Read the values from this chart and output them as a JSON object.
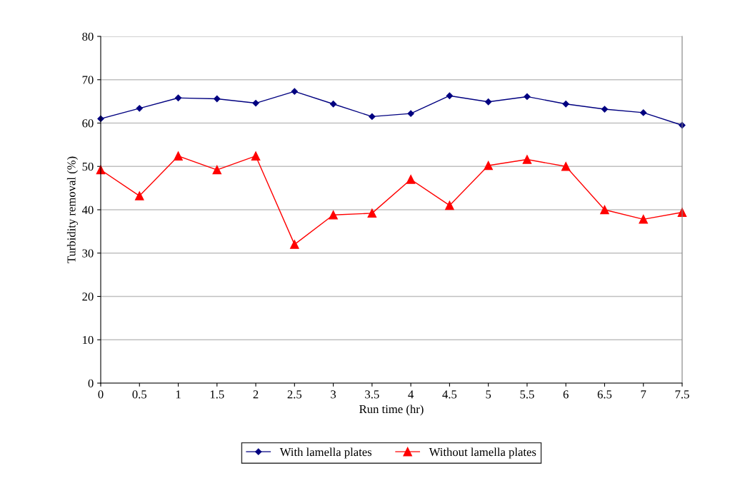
{
  "chart_data": {
    "type": "line",
    "xlabel": "Run time (hr)",
    "ylabel": "Turbidity removal (%)",
    "x": [
      0,
      0.5,
      1,
      1.5,
      2,
      2.5,
      3,
      3.5,
      4,
      4.5,
      5,
      5.5,
      6,
      6.5,
      7,
      7.5
    ],
    "series": [
      {
        "name": "With lamella plates",
        "color": "#000080",
        "marker": "diamond",
        "values": [
          61,
          63.4,
          65.8,
          65.6,
          64.6,
          67.3,
          64.4,
          61.5,
          62.2,
          66.3,
          64.9,
          66.1,
          64.4,
          63.2,
          62.4,
          59.5
        ]
      },
      {
        "name": "Without lamella plates",
        "color": "#ff0000",
        "marker": "triangle",
        "values": [
          49.2,
          43.2,
          52.4,
          49.2,
          52.4,
          32,
          38.8,
          39.2,
          47,
          41,
          50.2,
          51.6,
          50,
          40,
          37.8,
          39.4
        ]
      }
    ],
    "xlim": [
      0,
      7.5
    ],
    "xticks": [
      0,
      0.5,
      1,
      1.5,
      2,
      2.5,
      3,
      3.5,
      4,
      4.5,
      5,
      5.5,
      6,
      6.5,
      7,
      7.5
    ],
    "ylim": [
      0,
      80
    ],
    "yticks": [
      0,
      10,
      20,
      30,
      40,
      50,
      60,
      70,
      80
    ],
    "grid": "y",
    "legend": "bottom",
    "line_style": "solid"
  }
}
